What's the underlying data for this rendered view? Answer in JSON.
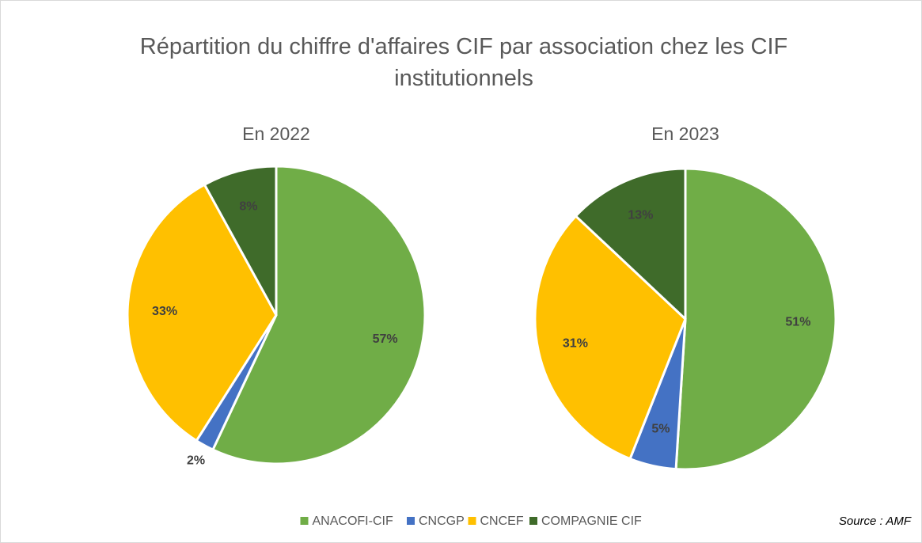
{
  "title": "Répartition du chiffre d'affaires CIF par association chez les CIF institutionnels",
  "source": "Source : AMF",
  "chart_data": [
    {
      "type": "pie",
      "subtitle": "En 2022",
      "categories": [
        "ANACOFI-CIF",
        "CNCGP",
        "CNCEF",
        "COMPAGNIE CIF"
      ],
      "values": [
        57,
        2,
        33,
        8
      ],
      "value_labels": [
        "57%",
        "2%",
        "33%",
        "8%"
      ],
      "colors": [
        "#70ad47",
        "#4472c4",
        "#ffc000",
        "#3f6b2a"
      ]
    },
    {
      "type": "pie",
      "subtitle": "En 2023",
      "categories": [
        "ANACOFI-CIF",
        "CNCGP",
        "CNCEF",
        "COMPAGNIE CIF"
      ],
      "values": [
        51,
        5,
        31,
        13
      ],
      "value_labels": [
        "51%",
        "5%",
        "31%",
        "13%"
      ],
      "colors": [
        "#70ad47",
        "#4472c4",
        "#ffc000",
        "#3f6b2a"
      ]
    }
  ]
}
